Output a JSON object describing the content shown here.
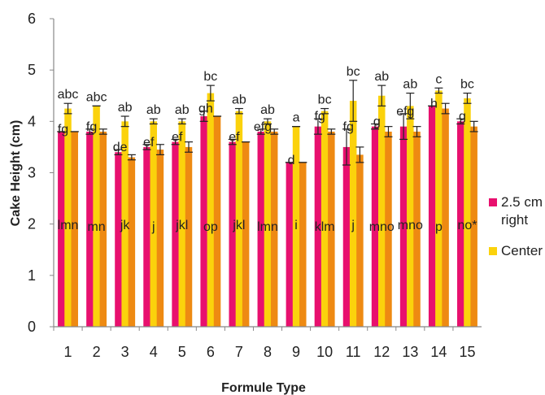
{
  "chart_data": {
    "type": "bar",
    "xlabel": "Formule Type",
    "ylabel": "Cake Height (cm)",
    "ylim": [
      0,
      6
    ],
    "yticks": [
      "0",
      "1",
      "2",
      "3",
      "4",
      "5",
      "6"
    ],
    "grid": false,
    "legend_position": "right",
    "categories": [
      "1",
      "2",
      "3",
      "4",
      "5",
      "6",
      "7",
      "8",
      "9",
      "10",
      "11",
      "12",
      "13",
      "14",
      "15"
    ],
    "series": [
      {
        "name": "2.5 cm right",
        "color": "#e8106e",
        "values": [
          3.8,
          3.8,
          3.4,
          3.5,
          3.6,
          4.1,
          3.6,
          3.8,
          3.2,
          3.9,
          3.5,
          3.9,
          3.9,
          4.3,
          4.0
        ],
        "errors": [
          0.0,
          0.05,
          0.05,
          0.05,
          0.05,
          0.1,
          0.05,
          0.05,
          0.0,
          0.15,
          0.35,
          0.05,
          0.25,
          0.0,
          0.05
        ],
        "labels": [
          "fg",
          "fg",
          "de",
          "ef",
          "ef",
          "gh",
          "ef",
          "efg",
          "d",
          "fg",
          "fg",
          "g",
          "efg",
          "h",
          "g"
        ],
        "group_labels": [
          "lmn",
          "mn",
          "jk",
          "j",
          "jkl",
          "op",
          "jkl",
          "lmn",
          "i",
          "klm",
          "j",
          "mno",
          "mno",
          "p",
          "no*"
        ]
      },
      {
        "name": "Center",
        "color": "#fbd20c",
        "values": [
          4.25,
          4.3,
          4.0,
          4.0,
          4.0,
          4.55,
          4.2,
          4.0,
          3.9,
          4.2,
          4.4,
          4.5,
          4.3,
          4.6,
          4.45
        ],
        "errors": [
          0.1,
          0.0,
          0.1,
          0.05,
          0.05,
          0.15,
          0.05,
          0.05,
          0.0,
          0.05,
          0.4,
          0.2,
          0.25,
          0.05,
          0.1
        ],
        "labels": [
          "abc",
          "abc",
          "ab",
          "ab",
          "ab",
          "bc",
          "ab",
          "ab",
          "a",
          "bc",
          "bc",
          "ab",
          "ab",
          "c",
          "bc"
        ]
      },
      {
        "color": "#ee8a12",
        "values": [
          3.8,
          3.8,
          3.3,
          3.45,
          3.5,
          4.1,
          3.6,
          3.8,
          3.2,
          3.8,
          3.35,
          3.8,
          3.8,
          4.25,
          3.9
        ],
        "errors": [
          0.0,
          0.05,
          0.05,
          0.1,
          0.1,
          0.0,
          0.0,
          0.05,
          0.0,
          0.05,
          0.15,
          0.1,
          0.1,
          0.1,
          0.1
        ]
      }
    ]
  }
}
